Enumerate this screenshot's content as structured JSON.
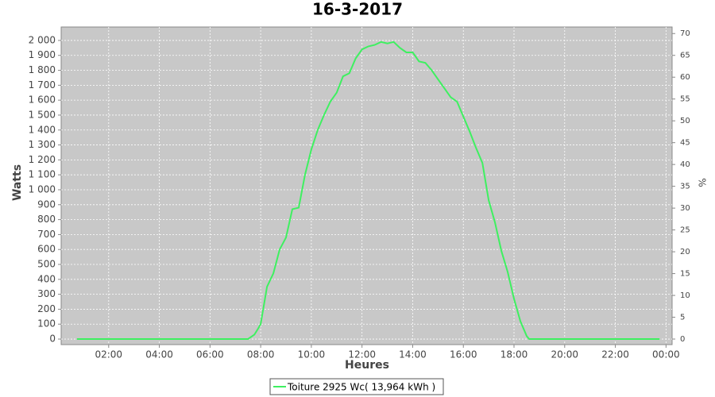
{
  "chart_data": {
    "type": "line",
    "title": "16-3-2017",
    "x_label": "Heures",
    "y_label": "Watts",
    "y2_label": "%",
    "x": [
      0.75,
      4,
      7.5,
      7.75,
      7.9,
      8.0,
      8.25,
      8.5,
      8.75,
      9.0,
      9.25,
      9.5,
      9.75,
      10.0,
      10.25,
      10.5,
      10.75,
      11.0,
      11.25,
      11.5,
      11.75,
      12.0,
      12.25,
      12.5,
      12.75,
      13.0,
      13.25,
      13.5,
      13.75,
      14.0,
      14.25,
      14.5,
      14.75,
      15.0,
      15.25,
      15.5,
      15.75,
      16.0,
      16.25,
      16.5,
      16.75,
      17.0,
      17.25,
      17.5,
      17.75,
      18.0,
      18.25,
      18.5,
      18.6,
      21,
      23.75
    ],
    "series": [
      {
        "name": "Toiture 2925 Wc( 13,964 kWh )",
        "color": "#3ef060",
        "values": [
          0,
          0,
          0,
          30,
          70,
          100,
          350,
          440,
          600,
          680,
          870,
          880,
          1100,
          1270,
          1400,
          1500,
          1590,
          1650,
          1760,
          1780,
          1880,
          1940,
          1960,
          1970,
          1990,
          1980,
          1990,
          1950,
          1920,
          1920,
          1860,
          1850,
          1800,
          1740,
          1680,
          1620,
          1590,
          1490,
          1390,
          1280,
          1180,
          930,
          780,
          590,
          450,
          270,
          120,
          20,
          0,
          0,
          0
        ]
      }
    ],
    "xlim": [
      0.125,
      24.24
    ],
    "xticks": [
      {
        "value": 2,
        "label": "02:00"
      },
      {
        "value": 4,
        "label": "04:00"
      },
      {
        "value": 6,
        "label": "06:00"
      },
      {
        "value": 8,
        "label": "08:00"
      },
      {
        "value": 10,
        "label": "10:00"
      },
      {
        "value": 12,
        "label": "12:00"
      },
      {
        "value": 14,
        "label": "14:00"
      },
      {
        "value": 16,
        "label": "16:00"
      },
      {
        "value": 18,
        "label": "18:00"
      },
      {
        "value": 20,
        "label": "20:00"
      },
      {
        "value": 22,
        "label": "22:00"
      },
      {
        "value": 24,
        "label": "00:00"
      }
    ],
    "ylim": [
      -37,
      2090
    ],
    "yticks": [
      0,
      100,
      200,
      300,
      400,
      500,
      600,
      700,
      800,
      900,
      {
        "value": 1000,
        "label": "1 000"
      },
      {
        "value": 1100,
        "label": "1 100"
      },
      {
        "value": 1200,
        "label": "1 200"
      },
      {
        "value": 1300,
        "label": "1 300"
      },
      {
        "value": 1400,
        "label": "1 400"
      },
      {
        "value": 1500,
        "label": "1 500"
      },
      {
        "value": 1600,
        "label": "1 600"
      },
      {
        "value": 1700,
        "label": "1 700"
      },
      {
        "value": 1800,
        "label": "1 800"
      },
      {
        "value": 1900,
        "label": "1 900"
      },
      {
        "value": 2000,
        "label": "2 000"
      }
    ],
    "y2lim": [
      -1.27,
      71.5
    ],
    "y2ticks": [
      0,
      5,
      10,
      15,
      20,
      25,
      30,
      35,
      40,
      45,
      50,
      55,
      60,
      65,
      70
    ],
    "grid": true,
    "plot_background": "#c8c8c8",
    "legend_position": "bottom"
  }
}
